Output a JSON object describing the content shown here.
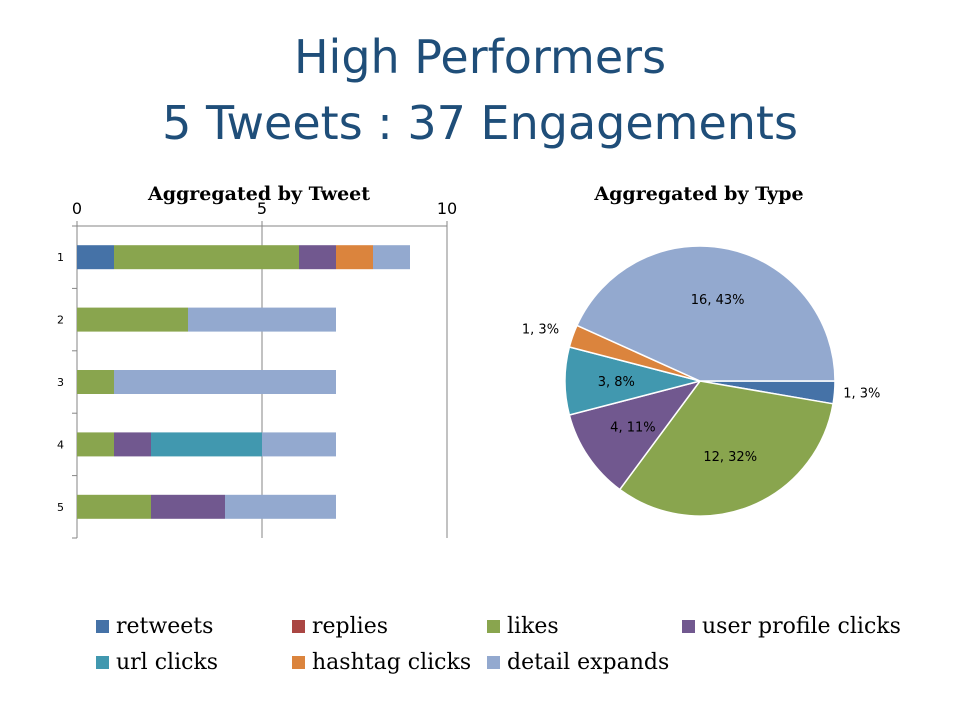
{
  "slide": {
    "title_line1": "High Performers",
    "title_line2": "5 Tweets : 37 Engagements"
  },
  "colors": {
    "title": "#1f4e79",
    "retweets": "#4572a7",
    "replies": "#aa4643",
    "likes": "#89a54e",
    "user profile clicks": "#71588f",
    "url clicks": "#4198af",
    "hashtag clicks": "#db843d",
    "detail expands": "#93a9cf"
  },
  "legend": [
    {
      "label": "retweets",
      "color": "#4572a7"
    },
    {
      "label": "replies",
      "color": "#aa4643"
    },
    {
      "label": "likes",
      "color": "#89a54e"
    },
    {
      "label": "user profile clicks",
      "color": "#71588f"
    },
    {
      "label": "url clicks",
      "color": "#4198af"
    },
    {
      "label": "hashtag clicks",
      "color": "#db843d"
    },
    {
      "label": "detail expands",
      "color": "#93a9cf"
    }
  ],
  "chart_data": [
    {
      "type": "bar",
      "orientation": "horizontal",
      "stacked": true,
      "title": "Aggregated by Tweet",
      "categories": [
        "1",
        "2",
        "3",
        "4",
        "5"
      ],
      "xlim": [
        0,
        10
      ],
      "xticks": [
        "0",
        "5",
        "10"
      ],
      "x_axis_position": "top",
      "grid": true,
      "series": [
        {
          "name": "retweets",
          "values": [
            1,
            0,
            0,
            0,
            0
          ]
        },
        {
          "name": "replies",
          "values": [
            0,
            0,
            0,
            0,
            0
          ]
        },
        {
          "name": "likes",
          "values": [
            5,
            3,
            1,
            1,
            2
          ]
        },
        {
          "name": "user profile clicks",
          "values": [
            1,
            0,
            0,
            1,
            2
          ]
        },
        {
          "name": "url clicks",
          "values": [
            0,
            0,
            0,
            3,
            0
          ]
        },
        {
          "name": "hashtag clicks",
          "values": [
            1,
            0,
            0,
            0,
            0
          ]
        },
        {
          "name": "detail expands",
          "values": [
            1,
            4,
            6,
            2,
            3
          ]
        }
      ],
      "legend_position": "bottom"
    },
    {
      "type": "pie",
      "title": "Aggregated by Type",
      "slices": [
        {
          "name": "retweets",
          "value": 1,
          "label": "1, 3%"
        },
        {
          "name": "likes",
          "value": 12,
          "label": "12, 32%"
        },
        {
          "name": "user profile clicks",
          "value": 4,
          "label": "4, 11%"
        },
        {
          "name": "url clicks",
          "value": 3,
          "label": "3, 8%"
        },
        {
          "name": "hashtag clicks",
          "value": 1,
          "label": "1, 3%"
        },
        {
          "name": "detail expands",
          "value": 16,
          "label": "16, 43%"
        }
      ],
      "legend_position": "bottom"
    }
  ]
}
